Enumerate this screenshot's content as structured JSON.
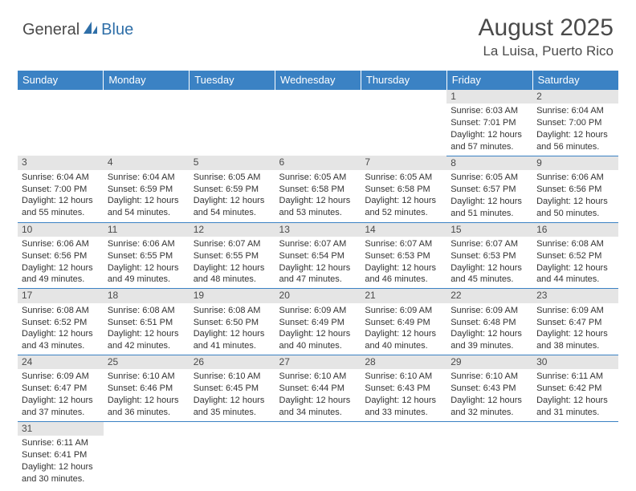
{
  "logo": {
    "word1": "General",
    "word2": "Blue",
    "sail_color": "#2f6fa8",
    "text_color": "#4a4a4a"
  },
  "header": {
    "month_title": "August 2025",
    "location": "La Luisa, Puerto Rico"
  },
  "colors": {
    "header_bg": "#3b82c4",
    "header_text": "#ffffff",
    "daybar_bg": "#e5e5e5",
    "border": "#3b82c4"
  },
  "weekdays": [
    "Sunday",
    "Monday",
    "Tuesday",
    "Wednesday",
    "Thursday",
    "Friday",
    "Saturday"
  ],
  "weeks": [
    [
      null,
      null,
      null,
      null,
      null,
      {
        "n": "1",
        "sr": "Sunrise: 6:03 AM",
        "ss": "Sunset: 7:01 PM",
        "d1": "Daylight: 12 hours",
        "d2": "and 57 minutes."
      },
      {
        "n": "2",
        "sr": "Sunrise: 6:04 AM",
        "ss": "Sunset: 7:00 PM",
        "d1": "Daylight: 12 hours",
        "d2": "and 56 minutes."
      }
    ],
    [
      {
        "n": "3",
        "sr": "Sunrise: 6:04 AM",
        "ss": "Sunset: 7:00 PM",
        "d1": "Daylight: 12 hours",
        "d2": "and 55 minutes."
      },
      {
        "n": "4",
        "sr": "Sunrise: 6:04 AM",
        "ss": "Sunset: 6:59 PM",
        "d1": "Daylight: 12 hours",
        "d2": "and 54 minutes."
      },
      {
        "n": "5",
        "sr": "Sunrise: 6:05 AM",
        "ss": "Sunset: 6:59 PM",
        "d1": "Daylight: 12 hours",
        "d2": "and 54 minutes."
      },
      {
        "n": "6",
        "sr": "Sunrise: 6:05 AM",
        "ss": "Sunset: 6:58 PM",
        "d1": "Daylight: 12 hours",
        "d2": "and 53 minutes."
      },
      {
        "n": "7",
        "sr": "Sunrise: 6:05 AM",
        "ss": "Sunset: 6:58 PM",
        "d1": "Daylight: 12 hours",
        "d2": "and 52 minutes."
      },
      {
        "n": "8",
        "sr": "Sunrise: 6:05 AM",
        "ss": "Sunset: 6:57 PM",
        "d1": "Daylight: 12 hours",
        "d2": "and 51 minutes."
      },
      {
        "n": "9",
        "sr": "Sunrise: 6:06 AM",
        "ss": "Sunset: 6:56 PM",
        "d1": "Daylight: 12 hours",
        "d2": "and 50 minutes."
      }
    ],
    [
      {
        "n": "10",
        "sr": "Sunrise: 6:06 AM",
        "ss": "Sunset: 6:56 PM",
        "d1": "Daylight: 12 hours",
        "d2": "and 49 minutes."
      },
      {
        "n": "11",
        "sr": "Sunrise: 6:06 AM",
        "ss": "Sunset: 6:55 PM",
        "d1": "Daylight: 12 hours",
        "d2": "and 49 minutes."
      },
      {
        "n": "12",
        "sr": "Sunrise: 6:07 AM",
        "ss": "Sunset: 6:55 PM",
        "d1": "Daylight: 12 hours",
        "d2": "and 48 minutes."
      },
      {
        "n": "13",
        "sr": "Sunrise: 6:07 AM",
        "ss": "Sunset: 6:54 PM",
        "d1": "Daylight: 12 hours",
        "d2": "and 47 minutes."
      },
      {
        "n": "14",
        "sr": "Sunrise: 6:07 AM",
        "ss": "Sunset: 6:53 PM",
        "d1": "Daylight: 12 hours",
        "d2": "and 46 minutes."
      },
      {
        "n": "15",
        "sr": "Sunrise: 6:07 AM",
        "ss": "Sunset: 6:53 PM",
        "d1": "Daylight: 12 hours",
        "d2": "and 45 minutes."
      },
      {
        "n": "16",
        "sr": "Sunrise: 6:08 AM",
        "ss": "Sunset: 6:52 PM",
        "d1": "Daylight: 12 hours",
        "d2": "and 44 minutes."
      }
    ],
    [
      {
        "n": "17",
        "sr": "Sunrise: 6:08 AM",
        "ss": "Sunset: 6:52 PM",
        "d1": "Daylight: 12 hours",
        "d2": "and 43 minutes."
      },
      {
        "n": "18",
        "sr": "Sunrise: 6:08 AM",
        "ss": "Sunset: 6:51 PM",
        "d1": "Daylight: 12 hours",
        "d2": "and 42 minutes."
      },
      {
        "n": "19",
        "sr": "Sunrise: 6:08 AM",
        "ss": "Sunset: 6:50 PM",
        "d1": "Daylight: 12 hours",
        "d2": "and 41 minutes."
      },
      {
        "n": "20",
        "sr": "Sunrise: 6:09 AM",
        "ss": "Sunset: 6:49 PM",
        "d1": "Daylight: 12 hours",
        "d2": "and 40 minutes."
      },
      {
        "n": "21",
        "sr": "Sunrise: 6:09 AM",
        "ss": "Sunset: 6:49 PM",
        "d1": "Daylight: 12 hours",
        "d2": "and 40 minutes."
      },
      {
        "n": "22",
        "sr": "Sunrise: 6:09 AM",
        "ss": "Sunset: 6:48 PM",
        "d1": "Daylight: 12 hours",
        "d2": "and 39 minutes."
      },
      {
        "n": "23",
        "sr": "Sunrise: 6:09 AM",
        "ss": "Sunset: 6:47 PM",
        "d1": "Daylight: 12 hours",
        "d2": "and 38 minutes."
      }
    ],
    [
      {
        "n": "24",
        "sr": "Sunrise: 6:09 AM",
        "ss": "Sunset: 6:47 PM",
        "d1": "Daylight: 12 hours",
        "d2": "and 37 minutes."
      },
      {
        "n": "25",
        "sr": "Sunrise: 6:10 AM",
        "ss": "Sunset: 6:46 PM",
        "d1": "Daylight: 12 hours",
        "d2": "and 36 minutes."
      },
      {
        "n": "26",
        "sr": "Sunrise: 6:10 AM",
        "ss": "Sunset: 6:45 PM",
        "d1": "Daylight: 12 hours",
        "d2": "and 35 minutes."
      },
      {
        "n": "27",
        "sr": "Sunrise: 6:10 AM",
        "ss": "Sunset: 6:44 PM",
        "d1": "Daylight: 12 hours",
        "d2": "and 34 minutes."
      },
      {
        "n": "28",
        "sr": "Sunrise: 6:10 AM",
        "ss": "Sunset: 6:43 PM",
        "d1": "Daylight: 12 hours",
        "d2": "and 33 minutes."
      },
      {
        "n": "29",
        "sr": "Sunrise: 6:10 AM",
        "ss": "Sunset: 6:43 PM",
        "d1": "Daylight: 12 hours",
        "d2": "and 32 minutes."
      },
      {
        "n": "30",
        "sr": "Sunrise: 6:11 AM",
        "ss": "Sunset: 6:42 PM",
        "d1": "Daylight: 12 hours",
        "d2": "and 31 minutes."
      }
    ],
    [
      {
        "n": "31",
        "sr": "Sunrise: 6:11 AM",
        "ss": "Sunset: 6:41 PM",
        "d1": "Daylight: 12 hours",
        "d2": "and 30 minutes."
      },
      null,
      null,
      null,
      null,
      null,
      null
    ]
  ]
}
